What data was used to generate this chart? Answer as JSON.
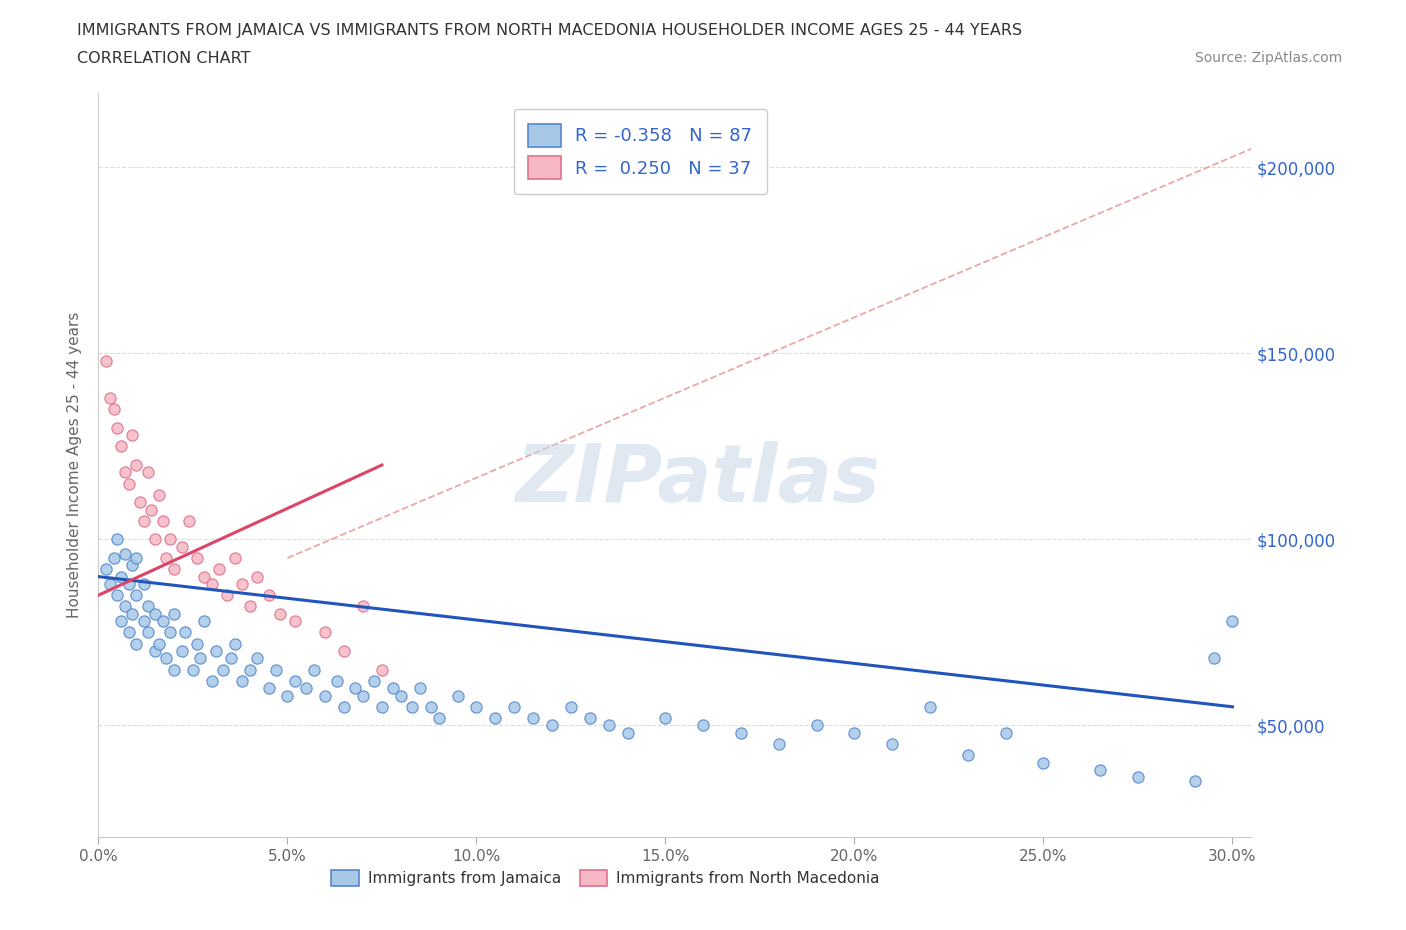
{
  "title_line1": "IMMIGRANTS FROM JAMAICA VS IMMIGRANTS FROM NORTH MACEDONIA HOUSEHOLDER INCOME AGES 25 - 44 YEARS",
  "title_line2": "CORRELATION CHART",
  "source_text": "Source: ZipAtlas.com",
  "ylabel": "Householder Income Ages 25 - 44 years",
  "xlim": [
    0.0,
    0.305
  ],
  "ylim": [
    20000,
    220000
  ],
  "xtick_labels": [
    "0.0%",
    "5.0%",
    "10.0%",
    "15.0%",
    "20.0%",
    "25.0%",
    "30.0%"
  ],
  "xtick_vals": [
    0.0,
    0.05,
    0.1,
    0.15,
    0.2,
    0.25,
    0.3
  ],
  "ytick_labels": [
    "$50,000",
    "$100,000",
    "$150,000",
    "$200,000"
  ],
  "ytick_vals": [
    50000,
    100000,
    150000,
    200000
  ],
  "jamaica_color": "#a8c8e8",
  "macedonia_color": "#f5b8c4",
  "jamaica_edge": "#5588cc",
  "macedonia_edge": "#e07090",
  "jamaica_line_color": "#2255bb",
  "macedonia_line_color": "#dd4466",
  "R_jamaica": -0.358,
  "N_jamaica": 87,
  "R_macedonia": 0.25,
  "N_macedonia": 37,
  "jamaica_scatter_x": [
    0.002,
    0.003,
    0.004,
    0.005,
    0.005,
    0.006,
    0.006,
    0.007,
    0.007,
    0.008,
    0.008,
    0.009,
    0.009,
    0.01,
    0.01,
    0.01,
    0.012,
    0.012,
    0.013,
    0.013,
    0.015,
    0.015,
    0.016,
    0.017,
    0.018,
    0.019,
    0.02,
    0.02,
    0.022,
    0.023,
    0.025,
    0.026,
    0.027,
    0.028,
    0.03,
    0.031,
    0.033,
    0.035,
    0.036,
    0.038,
    0.04,
    0.042,
    0.045,
    0.047,
    0.05,
    0.052,
    0.055,
    0.057,
    0.06,
    0.063,
    0.065,
    0.068,
    0.07,
    0.073,
    0.075,
    0.078,
    0.08,
    0.083,
    0.085,
    0.088,
    0.09,
    0.095,
    0.1,
    0.105,
    0.11,
    0.115,
    0.12,
    0.125,
    0.13,
    0.135,
    0.14,
    0.15,
    0.16,
    0.17,
    0.18,
    0.19,
    0.2,
    0.21,
    0.22,
    0.23,
    0.24,
    0.25,
    0.265,
    0.275,
    0.29,
    0.295,
    0.3
  ],
  "jamaica_scatter_y": [
    92000,
    88000,
    95000,
    85000,
    100000,
    78000,
    90000,
    82000,
    96000,
    75000,
    88000,
    80000,
    93000,
    72000,
    85000,
    95000,
    78000,
    88000,
    75000,
    82000,
    70000,
    80000,
    72000,
    78000,
    68000,
    75000,
    65000,
    80000,
    70000,
    75000,
    65000,
    72000,
    68000,
    78000,
    62000,
    70000,
    65000,
    68000,
    72000,
    62000,
    65000,
    68000,
    60000,
    65000,
    58000,
    62000,
    60000,
    65000,
    58000,
    62000,
    55000,
    60000,
    58000,
    62000,
    55000,
    60000,
    58000,
    55000,
    60000,
    55000,
    52000,
    58000,
    55000,
    52000,
    55000,
    52000,
    50000,
    55000,
    52000,
    50000,
    48000,
    52000,
    50000,
    48000,
    45000,
    50000,
    48000,
    45000,
    55000,
    42000,
    48000,
    40000,
    38000,
    36000,
    35000,
    68000,
    78000
  ],
  "macedonia_scatter_x": [
    0.002,
    0.003,
    0.004,
    0.005,
    0.006,
    0.007,
    0.008,
    0.009,
    0.01,
    0.011,
    0.012,
    0.013,
    0.014,
    0.015,
    0.016,
    0.017,
    0.018,
    0.019,
    0.02,
    0.022,
    0.024,
    0.026,
    0.028,
    0.03,
    0.032,
    0.034,
    0.036,
    0.038,
    0.04,
    0.042,
    0.045,
    0.048,
    0.052,
    0.06,
    0.065,
    0.07,
    0.075
  ],
  "macedonia_scatter_y": [
    148000,
    138000,
    135000,
    130000,
    125000,
    118000,
    115000,
    128000,
    120000,
    110000,
    105000,
    118000,
    108000,
    100000,
    112000,
    105000,
    95000,
    100000,
    92000,
    98000,
    105000,
    95000,
    90000,
    88000,
    92000,
    85000,
    95000,
    88000,
    82000,
    90000,
    85000,
    80000,
    78000,
    75000,
    70000,
    82000,
    65000
  ],
  "watermark": "ZIPatlas",
  "dashed_line_color": "#e89090"
}
